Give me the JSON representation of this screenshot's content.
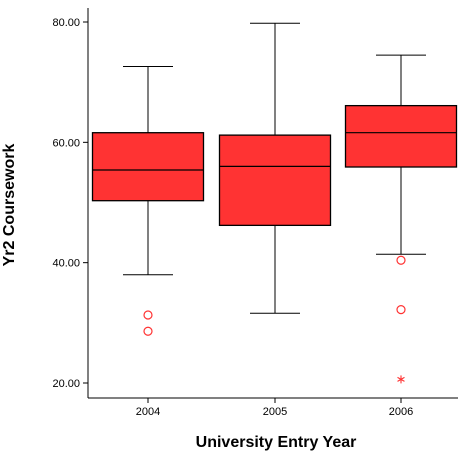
{
  "chart_data": {
    "type": "boxplot",
    "title": "",
    "xlabel": "University Entry Year",
    "ylabel": "Yr2 Coursework",
    "ylim": [
      20,
      80
    ],
    "y_ticks": [
      20,
      40,
      60,
      80
    ],
    "y_tick_labels": [
      "20.00",
      "40.00",
      "60.00",
      "80.00"
    ],
    "categories": [
      "2004",
      "2005",
      "2006"
    ],
    "box_color": "#ff3333",
    "outlier_color": "#ff3333",
    "grid": false,
    "legend": "none",
    "series": [
      {
        "category": "2004",
        "min": 38,
        "q1": 50.3,
        "median": 55.4,
        "q3": 61.6,
        "max": 72.6,
        "outliers": [
          31.3,
          28.6
        ],
        "extremes": []
      },
      {
        "category": "2005",
        "min": 31.6,
        "q1": 46.2,
        "median": 56.0,
        "q3": 61.2,
        "max": 79.8,
        "outliers": [],
        "extremes": []
      },
      {
        "category": "2006",
        "min": 41.4,
        "q1": 55.9,
        "median": 61.6,
        "q3": 66.1,
        "max": 74.5,
        "outliers": [
          40.4,
          32.2
        ],
        "extremes": [
          20.6
        ]
      }
    ]
  }
}
